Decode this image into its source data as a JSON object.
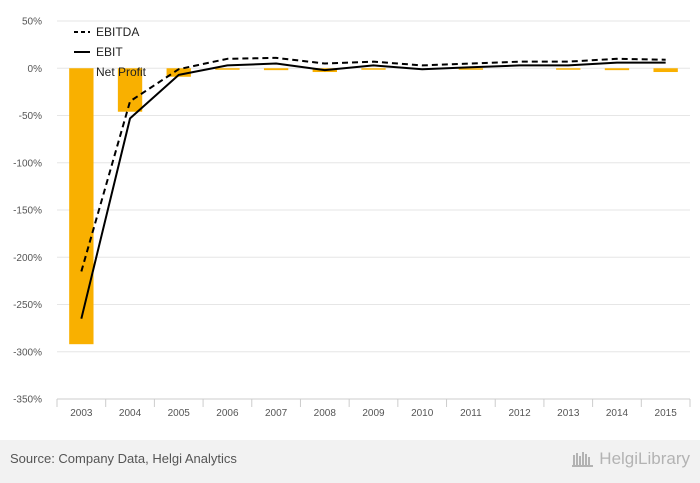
{
  "chart_data": {
    "type": "bar+line",
    "categories": [
      "2003",
      "2004",
      "2005",
      "2006",
      "2007",
      "2008",
      "2009",
      "2010",
      "2011",
      "2012",
      "2013",
      "2014",
      "2015"
    ],
    "yticks": [
      50,
      0,
      -50,
      -100,
      -150,
      -200,
      -250,
      -300,
      -350
    ],
    "ytick_labels": [
      "50%",
      "0%",
      "-50%",
      "-100%",
      "-150%",
      "-200%",
      "-250%",
      "-300%",
      "-350%"
    ],
    "ylim": [
      -350,
      50
    ],
    "ylabel": "",
    "xlabel": "",
    "grid": true,
    "legend_position": "top-left",
    "series": [
      {
        "name": "EBITDA",
        "type": "line",
        "style": "dashed",
        "color": "#000000",
        "values": [
          -215,
          -35,
          -1,
          10,
          11,
          5,
          7,
          3,
          5,
          7,
          7,
          10,
          9
        ]
      },
      {
        "name": "EBIT",
        "type": "line",
        "style": "solid",
        "color": "#000000",
        "values": [
          -265,
          -53,
          -7,
          3,
          5,
          -2,
          3,
          -1,
          1,
          3,
          3,
          6,
          6
        ]
      },
      {
        "name": "Net Profit",
        "type": "bar",
        "color": "#f9b000",
        "values": [
          -292,
          -46,
          -9,
          -1,
          -2,
          -4,
          -1,
          0,
          -1,
          0,
          -1,
          -2,
          -4
        ]
      }
    ]
  },
  "footer": {
    "source": "Source: Company Data, Helgi Analytics",
    "logo": "HelgiLibrary"
  }
}
